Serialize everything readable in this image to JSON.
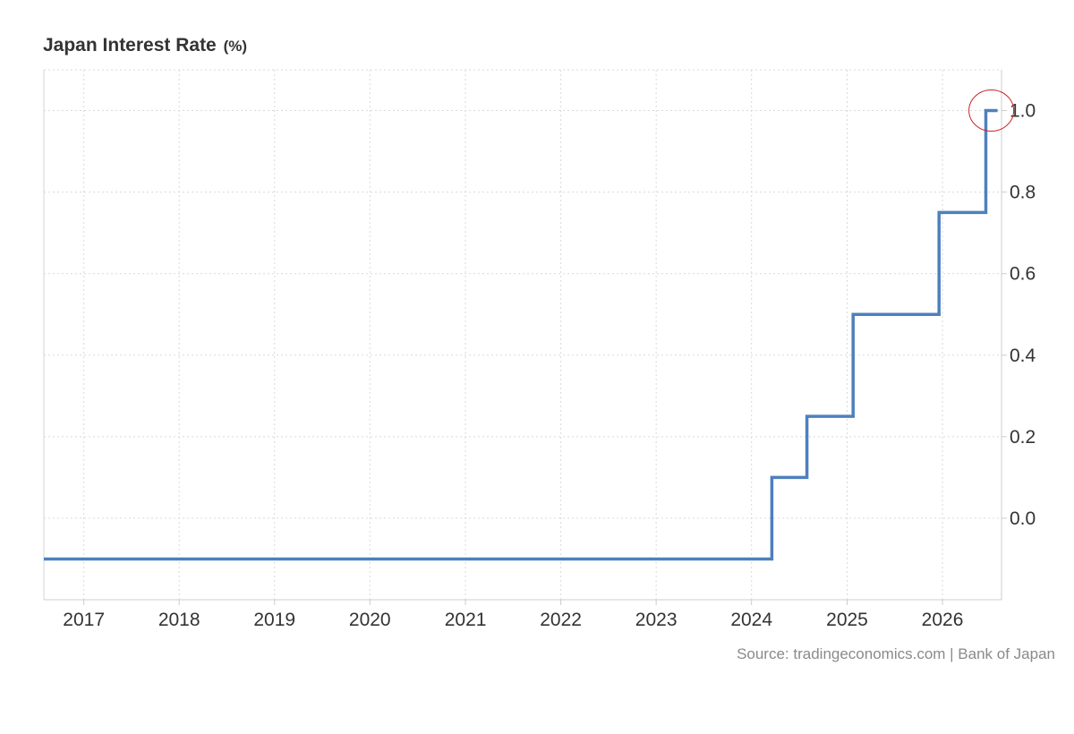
{
  "chart_data": {
    "type": "line",
    "step": true,
    "title": "Japan Interest Rate",
    "unit": "(%)",
    "source": "Source: tradingeconomics.com | Bank of Japan",
    "x_tick_labels": [
      "2017",
      "2018",
      "2019",
      "2020",
      "2021",
      "2022",
      "2023",
      "2024",
      "2025",
      "2026"
    ],
    "xlim": [
      "2016-08-01",
      "2026-08-15"
    ],
    "y_tick_labels": [
      "0.0",
      "0.2",
      "0.4",
      "0.6",
      "0.8",
      "1.0"
    ],
    "y_ticks": [
      0.0,
      0.2,
      0.4,
      0.6,
      0.8,
      1.0
    ],
    "ylim": [
      -0.2,
      1.1
    ],
    "grid": true,
    "y_axis_side": "right",
    "line_color": "#4e80bd",
    "series": [
      {
        "name": "",
        "points": [
          {
            "x": "2016-08-01",
            "y": -0.1
          },
          {
            "x": "2024-03-19",
            "y": 0.1
          },
          {
            "x": "2024-07-31",
            "y": 0.25
          },
          {
            "x": "2025-01-24",
            "y": 0.5
          },
          {
            "x": "2025-12-19",
            "y": 0.75
          },
          {
            "x": "2026-06-16",
            "y": 1.0
          },
          {
            "x": "2026-07-31",
            "y": 1.0
          }
        ]
      }
    ],
    "highlight": {
      "x": "2026-07-31",
      "y": 1.0,
      "color": "#cc2222"
    }
  }
}
